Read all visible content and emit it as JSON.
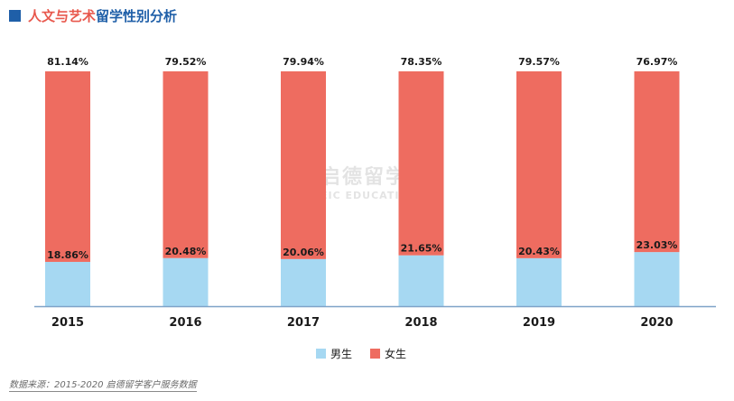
{
  "title": {
    "part_a": "人文与艺术",
    "part_b": "留学性别分析"
  },
  "source": "数据来源：2015-2020 启德留学客户服务数据",
  "watermark": {
    "cn": "启德留学",
    "en": "EIC EDUCATION"
  },
  "colors": {
    "male": "#a6d8f2",
    "female": "#ee6c60",
    "axis": "#7fa3c8",
    "label": "#1a1a1a",
    "title_red": "#e8584d",
    "title_blue": "#1f5fa8"
  },
  "chart_data": {
    "type": "bar",
    "stacked": true,
    "categories": [
      "2015",
      "2016",
      "2017",
      "2018",
      "2019",
      "2020"
    ],
    "series": [
      {
        "name": "男生",
        "values": [
          18.86,
          20.48,
          20.06,
          21.65,
          20.43,
          23.03
        ],
        "labels": [
          "18.86%",
          "20.48%",
          "20.06%",
          "21.65%",
          "20.43%",
          "23.03%"
        ]
      },
      {
        "name": "女生",
        "values": [
          81.14,
          79.52,
          79.94,
          78.35,
          79.57,
          76.97
        ],
        "labels": [
          "81.14%",
          "79.52%",
          "79.94%",
          "78.35%",
          "79.57%",
          "76.97%"
        ]
      }
    ],
    "ylim": [
      0,
      100
    ],
    "legend": "bottom-center",
    "grid": false
  }
}
